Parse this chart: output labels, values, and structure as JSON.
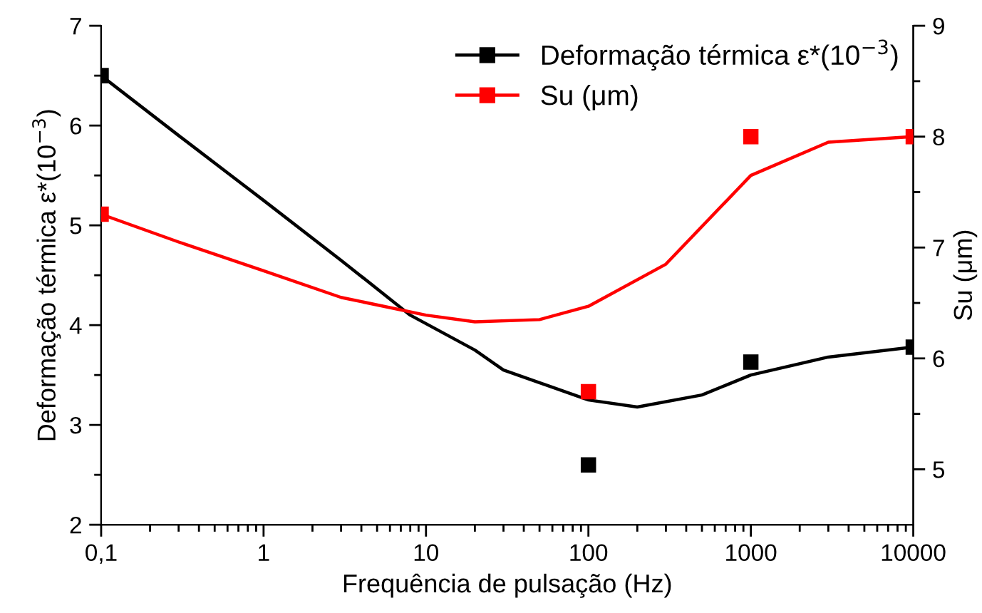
{
  "chart_data": {
    "type": "scatter",
    "xlabel": "Frequência de pulsação (Hz)",
    "ylabel": "Deformação térmica ε*(10$^{−3}$)",
    "y2label": "Su (μm)",
    "log": "x",
    "xlim": [
      0.1,
      10000
    ],
    "xticks": [
      {
        "value": 0.1,
        "label": "0,1"
      },
      1,
      10,
      100,
      1000,
      10000,
      {
        "value": 0.2,
        "label": null
      },
      {
        "value": 0.3,
        "label": null
      },
      {
        "value": 0.4,
        "label": null
      },
      {
        "value": 0.5,
        "label": null
      },
      {
        "value": 0.6,
        "label": null
      },
      {
        "value": 0.7,
        "label": null
      },
      {
        "value": 0.8,
        "label": null
      },
      {
        "value": 0.9,
        "label": null
      },
      {
        "value": 2,
        "label": null
      },
      {
        "value": 3,
        "label": null
      },
      {
        "value": 4,
        "label": null
      },
      {
        "value": 5,
        "label": null
      },
      {
        "value": 6,
        "label": null
      },
      {
        "value": 7,
        "label": null
      },
      {
        "value": 8,
        "label": null
      },
      {
        "value": 9,
        "label": null
      },
      {
        "value": 20,
        "label": null
      },
      {
        "value": 30,
        "label": null
      },
      {
        "value": 40,
        "label": null
      },
      {
        "value": 50,
        "label": null
      },
      {
        "value": 60,
        "label": null
      },
      {
        "value": 70,
        "label": null
      },
      {
        "value": 80,
        "label": null
      },
      {
        "value": 90,
        "label": null
      },
      {
        "value": 200,
        "label": null
      },
      {
        "value": 300,
        "label": null
      },
      {
        "value": 400,
        "label": null
      },
      {
        "value": 500,
        "label": null
      },
      {
        "value": 600,
        "label": null
      },
      {
        "value": 700,
        "label": null
      },
      {
        "value": 800,
        "label": null
      },
      {
        "value": 900,
        "label": null
      },
      {
        "value": 2000,
        "label": null
      },
      {
        "value": 3000,
        "label": null
      },
      {
        "value": 4000,
        "label": null
      },
      {
        "value": 5000,
        "label": null
      },
      {
        "value": 6000,
        "label": null
      },
      {
        "value": 7000,
        "label": null
      },
      {
        "value": 8000,
        "label": null
      },
      {
        "value": 9000,
        "label": null
      }
    ],
    "ylim": [
      2,
      7
    ],
    "yticks": [
      2,
      3,
      4,
      5,
      6,
      7,
      {
        "value": 2.5,
        "label": null
      },
      {
        "value": 3.5,
        "label": null
      },
      {
        "value": 4.5,
        "label": null
      },
      {
        "value": 5.5,
        "label": null
      },
      {
        "value": 6.5,
        "label": null
      }
    ],
    "y2lim": [
      4.5,
      9
    ],
    "y2ticks": [
      5,
      6,
      7,
      8,
      9,
      {
        "value": 5.5,
        "label": null
      },
      {
        "value": 6.5,
        "label": null
      },
      {
        "value": 7.5,
        "label": null
      },
      {
        "value": 8.5,
        "label": null
      }
    ],
    "marker": "square",
    "line_style": "solid",
    "legend": "top right",
    "grid": false,
    "series": [
      {
        "name": "Deformação térmica ε*(10$^{−3}$)",
        "color": "#000000",
        "x": [
          0.1,
          100,
          1000,
          10000
        ],
        "values": [
          6.5,
          2.6,
          3.63,
          3.78
        ]
      },
      {
        "name": "Su (μm)",
        "color": "#ff0000",
        "axis": "y2",
        "x": [
          0.1,
          100,
          1000,
          10000
        ],
        "values": [
          7.3,
          5.7,
          8.0,
          8.0
        ]
      },
      {
        "type": "line",
        "marker": "none",
        "color": "#000000",
        "x": [
          0.1,
          0.3,
          1,
          3,
          8,
          20,
          30,
          100,
          200,
          500,
          1000,
          3000,
          10000
        ],
        "values": [
          6.5,
          5.9,
          5.25,
          4.65,
          4.1,
          3.75,
          3.55,
          3.25,
          3.18,
          3.3,
          3.5,
          3.68,
          3.78
        ]
      },
      {
        "type": "line",
        "marker": "none",
        "color": "#ff0000",
        "axis": "y2",
        "x": [
          0.1,
          0.3,
          1,
          3,
          10,
          20,
          50,
          100,
          300,
          1000,
          3000,
          10000
        ],
        "values": [
          7.3,
          7.05,
          6.79,
          6.55,
          6.39,
          6.33,
          6.35,
          6.47,
          6.85,
          7.65,
          7.95,
          8.0
        ]
      }
    ]
  }
}
